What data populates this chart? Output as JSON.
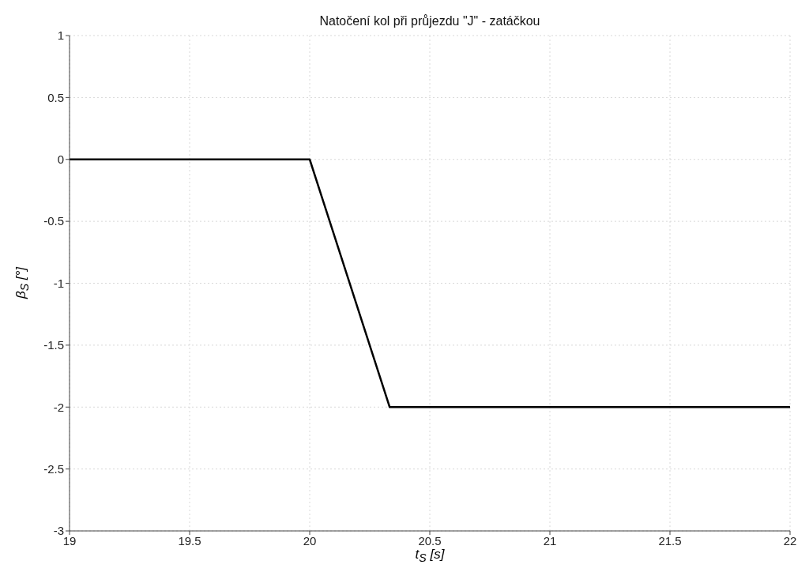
{
  "chart_data": {
    "type": "line",
    "title": "Natočení kol při průjezdu \"J\" - zatáčkou",
    "xlabel": "t$_{S}$ [s]",
    "ylabel": "β$_{S}$ [°]",
    "x": [
      19,
      20,
      20.333,
      22
    ],
    "series": [
      {
        "color": "#000000",
        "values": [
          0,
          0,
          -2,
          -2
        ]
      }
    ],
    "xlim": [
      19,
      22
    ],
    "xticks": [
      19,
      19.5,
      20,
      20.5,
      21,
      21.5,
      22
    ],
    "ylim": [
      -3,
      1
    ],
    "yticks": [
      -3,
      -2.5,
      -2,
      -1.5,
      -1,
      -0.5,
      0,
      0.5,
      1
    ],
    "grid": true,
    "marker": "none",
    "line_style": "solid",
    "legend": false
  }
}
